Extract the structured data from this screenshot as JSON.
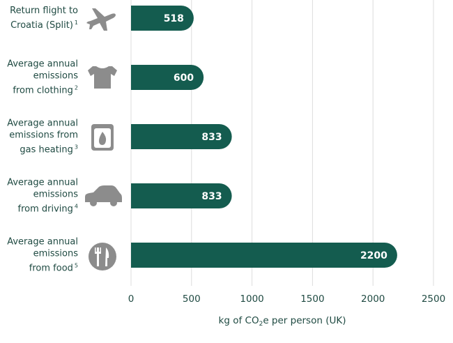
{
  "chart_data": {
    "type": "bar",
    "orientation": "horizontal",
    "categories": [
      "Return flight to\nCroatia (Split)",
      "Average annual\nemissions\nfrom clothing",
      "Average annual\nemissions from\ngas heating",
      "Average annual\nemissions\nfrom driving",
      "Average annual\nemissions\nfrom food"
    ],
    "footnotes": [
      "1",
      "2",
      "3",
      "4",
      "5"
    ],
    "values": [
      518,
      600,
      833,
      833,
      2200
    ],
    "color": "#145c4f",
    "xlim": [
      0,
      2500
    ],
    "xticks": [
      0,
      500,
      1000,
      1500,
      2000,
      2500
    ],
    "grid": true,
    "x_label_parts": [
      "kg of CO",
      "2",
      "e per person (UK)"
    ]
  }
}
